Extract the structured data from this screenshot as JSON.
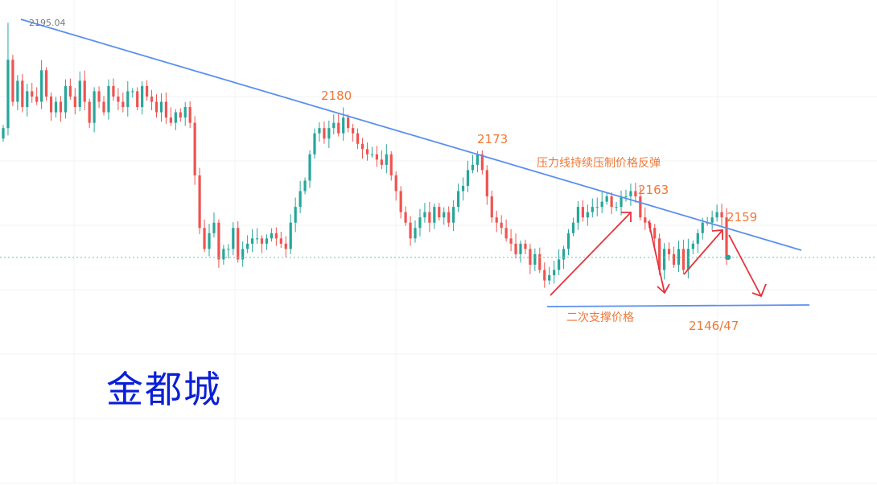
{
  "chart_data": {
    "type": "candlestick",
    "title": "",
    "xlabel": "",
    "ylabel": "",
    "ylim": [
      2132,
      2196
    ],
    "high_marker": "2195.04",
    "current_price_line": 2150.4,
    "grid": true,
    "colors": {
      "up": "#26a69a",
      "down": "#ef5350",
      "trendline": "#5b8ff0",
      "arrow": "#e8313b",
      "annotation": "#f07838",
      "watermark": "#0a1ed8"
    },
    "annotations": {
      "peak1": "2180",
      "peak2": "2173",
      "resistance_note": "压力线持续压制价格反弹",
      "peak3": "2163",
      "peak4": "2159",
      "support_note": "二次支撑价格",
      "target": "2146/47"
    },
    "closes": [
      2175,
      2188,
      2180,
      2184,
      2179,
      2182,
      2181,
      2180,
      2186,
      2181,
      2178,
      2180,
      2178,
      2183,
      2181,
      2179,
      2184,
      2180,
      2176,
      2182,
      2180,
      2178,
      2183,
      2181,
      2180,
      2179,
      2182,
      2182,
      2179,
      2183,
      2181,
      2180,
      2178,
      2180,
      2177,
      2176,
      2178,
      2177,
      2179,
      2176,
      2166,
      2156,
      2152,
      2155,
      2157,
      2150,
      2152,
      2152,
      2156,
      2150,
      2152,
      2153,
      2154,
      2154,
      2153,
      2154,
      2155,
      2154,
      2153,
      2152,
      2157,
      2160,
      2163,
      2165,
      2170,
      2174,
      2175,
      2173,
      2175,
      2176,
      2174,
      2177,
      2175,
      2174,
      2172,
      2171,
      2170,
      2170,
      2169,
      2168,
      2170,
      2166,
      2163,
      2159,
      2157,
      2154,
      2156,
      2158,
      2159,
      2157,
      2160,
      2158,
      2159,
      2157,
      2160,
      2163,
      2164,
      2167,
      2168,
      2170,
      2167,
      2162,
      2158,
      2157,
      2156,
      2154,
      2153,
      2151,
      2153,
      2152,
      2149,
      2151,
      2148,
      2146,
      2147,
      2148,
      2150,
      2152,
      2155,
      2157,
      2160,
      2158,
      2159,
      2160,
      2160,
      2161,
      2162,
      2160,
      2160,
      2162,
      2162,
      2163,
      2162,
      2158,
      2157,
      2156,
      2154,
      2148,
      2152,
      2151,
      2149,
      2152,
      2148,
      2152,
      2153,
      2155,
      2157,
      2157,
      2158,
      2159,
      2158,
      2150
    ]
  }
}
